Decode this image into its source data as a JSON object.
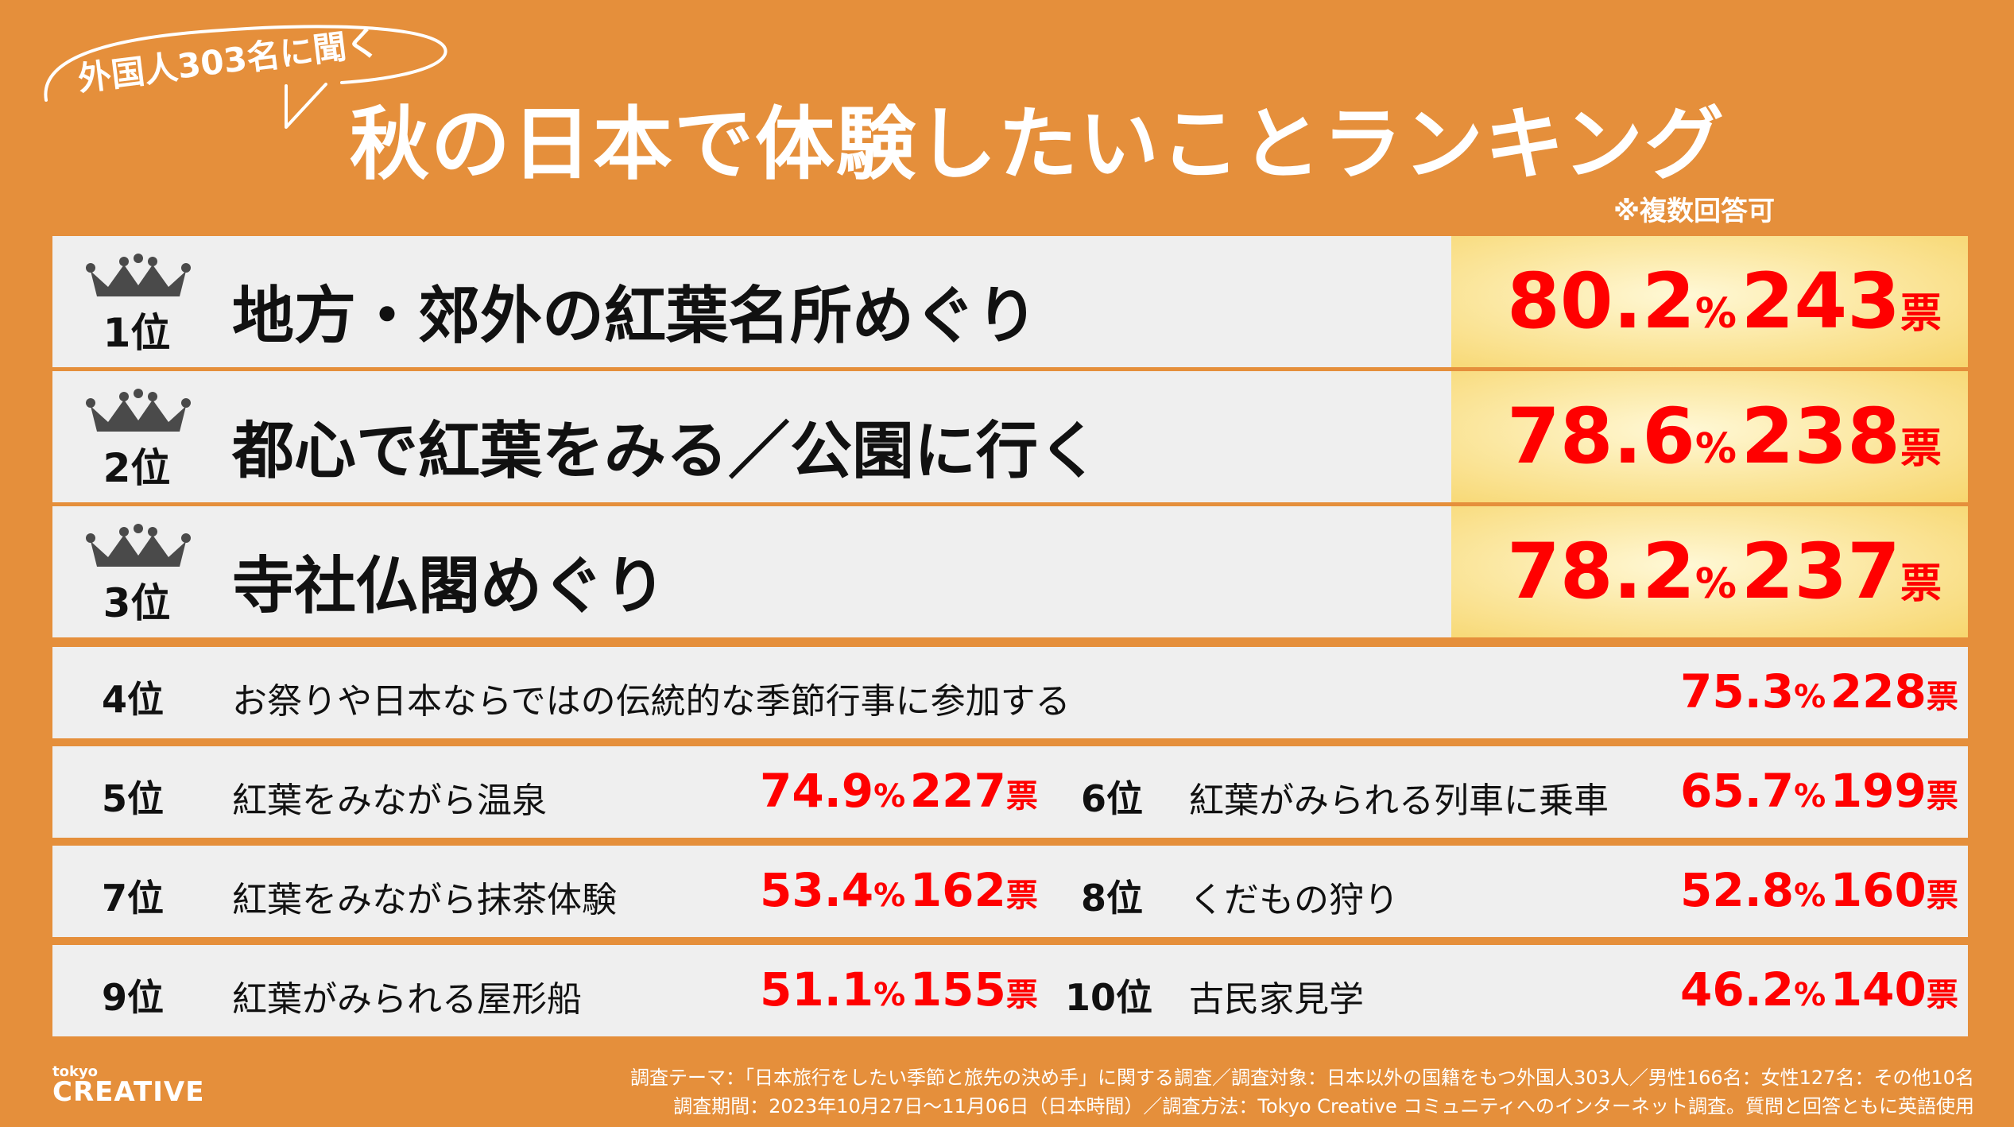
{
  "header": {
    "bubble": "外国人303名に聞く",
    "title": "秋の日本で体験したいことランキング",
    "note": "※複数回答可"
  },
  "top_items": [
    {
      "rank": "1位",
      "label": "地方・郊外の紅葉名所めぐり",
      "pct": "80.2",
      "votes": "243"
    },
    {
      "rank": "2位",
      "label": "都心で紅葉をみる／公園に行く",
      "pct": "78.6",
      "votes": "238"
    },
    {
      "rank": "3位",
      "label": "寺社仏閣めぐり",
      "pct": "78.2",
      "votes": "237"
    }
  ],
  "items": [
    {
      "rank": "4位",
      "label": "お祭りや日本ならではの伝統的な季節行事に参加する",
      "pct": "75.3",
      "votes": "228"
    },
    {
      "rank": "5位",
      "label": "紅葉をみながら温泉",
      "pct": "74.9",
      "votes": "227"
    },
    {
      "rank": "6位",
      "label": "紅葉がみられる列車に乗車",
      "pct": "65.7",
      "votes": "199"
    },
    {
      "rank": "7位",
      "label": "紅葉をみながら抹茶体験",
      "pct": "53.4",
      "votes": "162"
    },
    {
      "rank": "8位",
      "label": "くだもの狩り",
      "pct": "52.8",
      "votes": "160"
    },
    {
      "rank": "9位",
      "label": "紅葉がみられる屋形船",
      "pct": "51.1",
      "votes": "155"
    },
    {
      "rank": "10位",
      "label": "古民家見学",
      "pct": "46.2",
      "votes": "140"
    }
  ],
  "units": {
    "pct": "%",
    "votes": "票"
  },
  "footer": {
    "logo_small": "tokyo",
    "logo": "CREATIVE",
    "line1": "調査テーマ：「日本旅行をしたい季節と旅先の決め手」に関する調査／調査対象：日本以外の国籍をもつ外国人303人／男性166名：女性127名：その他10名",
    "line2": "調査期間：2023年10月27日〜11月06日（日本時間）／調査方法：Tokyo Creative コミュニティへのインターネット調査。質問と回答ともに英語使用"
  },
  "colors": {
    "background": "#E58F3B",
    "row": "#EFEFEF",
    "value": "#FF0000",
    "gold": "#F7D66E"
  },
  "icons": {
    "crown": "crown-icon"
  }
}
